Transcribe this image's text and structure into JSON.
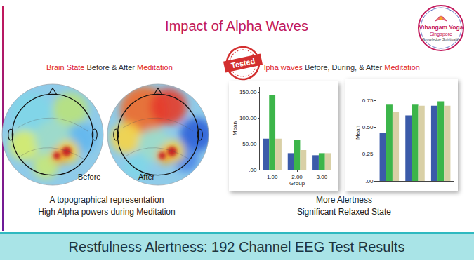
{
  "title": "Impact of Alpha Waves",
  "logo": {
    "name": "Vihangam Yoga",
    "place": "Singapore",
    "tagline": "Knowledge Spirituality"
  },
  "stamp": "Tested",
  "left_panel": {
    "heading": [
      {
        "text": "Brain State",
        "color": "#e0262b"
      },
      {
        "text": "Before & After",
        "color": "#333333"
      },
      {
        "text": "Meditation",
        "color": "#e0262b"
      }
    ],
    "maps": [
      {
        "label": "Before"
      },
      {
        "label": "After"
      }
    ],
    "caption": [
      "A topographical representation",
      "High Alpha powers during Meditation"
    ]
  },
  "right_panel": {
    "heading": [
      {
        "text": "lpha waves",
        "color": "#e0262b"
      },
      {
        "text": "Before, During, & After",
        "color": "#333333"
      },
      {
        "text": "Meditation",
        "color": "#e0262b"
      }
    ],
    "caption": [
      "More Alertness",
      "Significant Relaxed State"
    ]
  },
  "chart_data": [
    {
      "type": "bar",
      "categories": [
        "1.00",
        "2.00",
        "3.00"
      ],
      "x_label": "Group",
      "y_label": "Mean",
      "series": [
        {
          "color": "#3b5ba9",
          "values": [
            60,
            32,
            28
          ]
        },
        {
          "color": "#3cb54a",
          "values": [
            145,
            58,
            32
          ]
        },
        {
          "color": "#d9d0a6",
          "values": [
            60,
            38,
            32
          ]
        }
      ],
      "ylim": [
        0,
        160
      ],
      "yticks": [
        {
          "value": 0,
          "label": ".00"
        },
        {
          "value": 50,
          "label": "50.00"
        },
        {
          "value": 100,
          "label": "100.00"
        },
        {
          "value": 150,
          "label": "150.00"
        }
      ],
      "grid": false
    },
    {
      "type": "bar",
      "categories": [
        null,
        null,
        null
      ],
      "y_label": "Mean",
      "series": [
        {
          "color": "#3b5ba9",
          "values": [
            0.45,
            0.61,
            0.7
          ]
        },
        {
          "color": "#3cb54a",
          "values": [
            0.71,
            0.71,
            0.74
          ]
        },
        {
          "color": "#d9d0a6",
          "values": [
            0.64,
            0.7,
            0.7
          ]
        }
      ],
      "ylim": [
        0,
        0.9
      ],
      "yticks": [
        {
          "value": 0,
          "label": ".00"
        },
        0.25,
        {
          "value": 0.5,
          "label": "0.50"
        },
        {
          "value": 0.75,
          "label": "0.75"
        }
      ],
      "grid": false
    }
  ],
  "footer": "Restfulness Alertness: 192 Channel EEG Test Results"
}
